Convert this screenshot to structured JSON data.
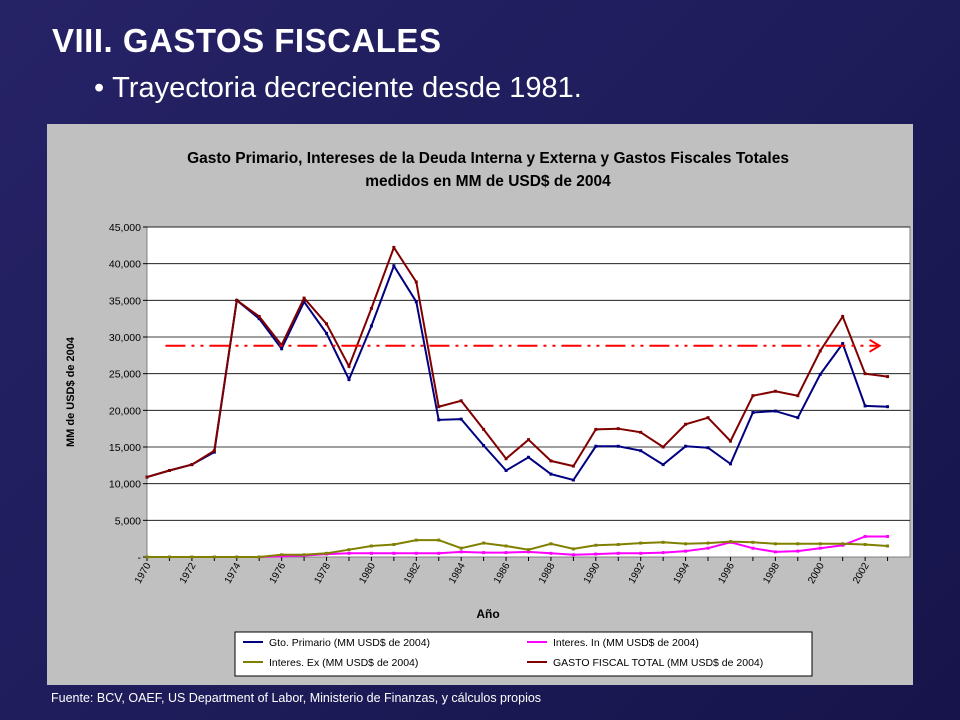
{
  "slide": {
    "title": "VIII. GASTOS FISCALES",
    "bullet": "Trayectoria decreciente desde 1981.",
    "source": "Fuente: BCV, OAEF, US Department of Labor,  Ministerio de Finanzas, y cálculos propios"
  },
  "chart_data": {
    "type": "line",
    "title": [
      "Gasto Primario, Intereses de la Deuda Interna y Externa y Gastos Fiscales Totales",
      "medidos en MM de USD$ de 2004"
    ],
    "xlabel": "Año",
    "ylabel": "MM de USD$ de 2004",
    "x": [
      1970,
      1971,
      1972,
      1973,
      1974,
      1975,
      1976,
      1977,
      1978,
      1979,
      1980,
      1981,
      1982,
      1983,
      1984,
      1985,
      1986,
      1987,
      1988,
      1989,
      1990,
      1991,
      1992,
      1993,
      1994,
      1995,
      1996,
      1997,
      1998,
      1999,
      2000,
      2001,
      2002,
      2003
    ],
    "x_tick_labels": [
      "1970",
      "1972",
      "1974",
      "1976",
      "1978",
      "1980",
      "1982",
      "1984",
      "1986",
      "1988",
      "1990",
      "1992",
      "1994",
      "1996",
      "1998",
      "2000",
      "2002"
    ],
    "ylim": [
      0,
      45000
    ],
    "y_tick_labels": [
      "-",
      "5,000",
      "10,000",
      "15,000",
      "20,000",
      "25,000",
      "30,000",
      "35,000",
      "40,000",
      "45,000"
    ],
    "grid": "horizontal",
    "legend_position": "bottom",
    "series": [
      {
        "name": "Gto. Primario (MM USD$ de 2004)",
        "color": "#000080",
        "values": [
          10900,
          11800,
          12600,
          14300,
          35000,
          32500,
          28400,
          34800,
          30500,
          24200,
          31500,
          39700,
          34800,
          18700,
          18800,
          15200,
          11800,
          13600,
          11300,
          10500,
          15100,
          15100,
          14500,
          12600,
          15100,
          14900,
          12700,
          19700,
          19900,
          19000,
          24900,
          29100,
          20600,
          20500
        ]
      },
      {
        "name": "Interes. In (MM USD$ de 2004)",
        "color": "#ff00ff",
        "values": [
          0,
          0,
          0,
          0,
          0,
          0,
          100,
          200,
          400,
          500,
          500,
          500,
          500,
          500,
          700,
          600,
          600,
          700,
          500,
          300,
          400,
          500,
          500,
          600,
          800,
          1200,
          2000,
          1200,
          700,
          800,
          1200,
          1600,
          2800,
          2800
        ]
      },
      {
        "name": "Interes. Ex (MM USD$ de 2004)",
        "color": "#808000",
        "values": [
          0,
          0,
          0,
          0,
          0,
          0,
          300,
          300,
          500,
          1000,
          1500,
          1700,
          2300,
          2300,
          1200,
          1900,
          1500,
          1000,
          1800,
          1100,
          1600,
          1700,
          1900,
          2000,
          1800,
          1900,
          2100,
          2000,
          1800,
          1800,
          1800,
          1800,
          1700,
          1500
        ]
      },
      {
        "name": "GASTO FISCAL TOTAL (MM USD$ de 2004)",
        "color": "#800000",
        "values": [
          10900,
          11800,
          12600,
          14500,
          35000,
          32800,
          28900,
          35300,
          31800,
          26000,
          33900,
          42200,
          37500,
          20500,
          21300,
          17400,
          13400,
          16000,
          13100,
          12400,
          17400,
          17500,
          17000,
          15000,
          18100,
          19000,
          15800,
          22000,
          22600,
          22000,
          28100,
          32800,
          25000,
          24600
        ]
      }
    ],
    "annotations": [
      {
        "type": "dash-dot arrow",
        "color": "#ff0000",
        "y": 28800,
        "x_from": 1971,
        "x_to": 2003
      }
    ]
  }
}
